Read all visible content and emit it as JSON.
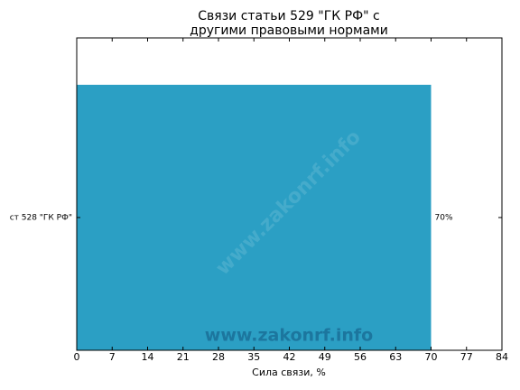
{
  "chart_data": {
    "type": "barh",
    "title": [
      "Связи статьи 529 \"ГК РФ\" с",
      "другими правовыми нормами"
    ],
    "categories": [
      "ст 528 \"ГК РФ\""
    ],
    "values": [
      70
    ],
    "value_labels": [
      "70%"
    ],
    "color": "#2b9fc4",
    "xlabel": "Сила связи, %",
    "xlim": [
      0,
      84
    ],
    "xticks": [
      0,
      7,
      14,
      21,
      28,
      35,
      42,
      49,
      56,
      63,
      70,
      77,
      84
    ],
    "watermark": "www.zakonrf.info"
  }
}
